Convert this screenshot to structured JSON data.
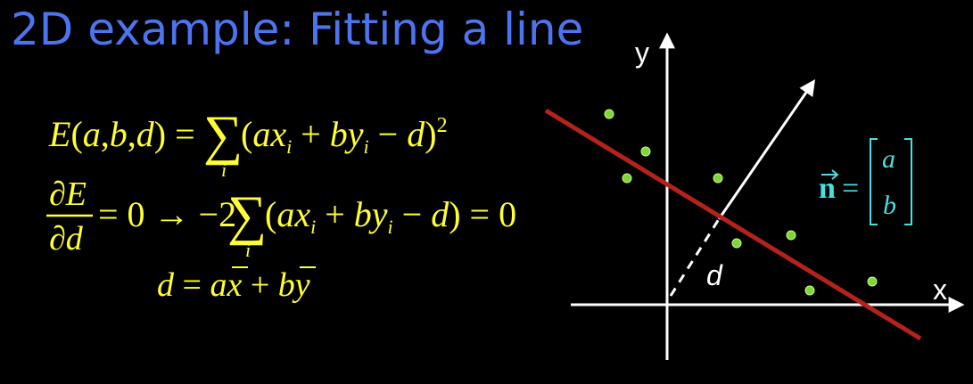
{
  "title": "2D example: Fitting a line",
  "equations": {
    "energy": "E(a,b,d) = Σᵢ (axᵢ + byᵢ − d)²",
    "derivative": "∂E/∂d = 0 → −2 Σᵢ (axᵢ + byᵢ − d) = 0",
    "solution": "d = a x̄ + b ȳ"
  },
  "diagram": {
    "x_axis_label": "x",
    "y_axis_label": "y",
    "distance_label": "d",
    "normal_label": "n⃗ = [a, b]",
    "normal_a": "a",
    "normal_b": "b",
    "colors": {
      "background": "#000000",
      "title": "#4c74f0",
      "equations": "#ffff33",
      "line": "#b5221a",
      "points": "#7fd63a",
      "normal": "#46e0e0",
      "axes": "#ffffff"
    }
  }
}
